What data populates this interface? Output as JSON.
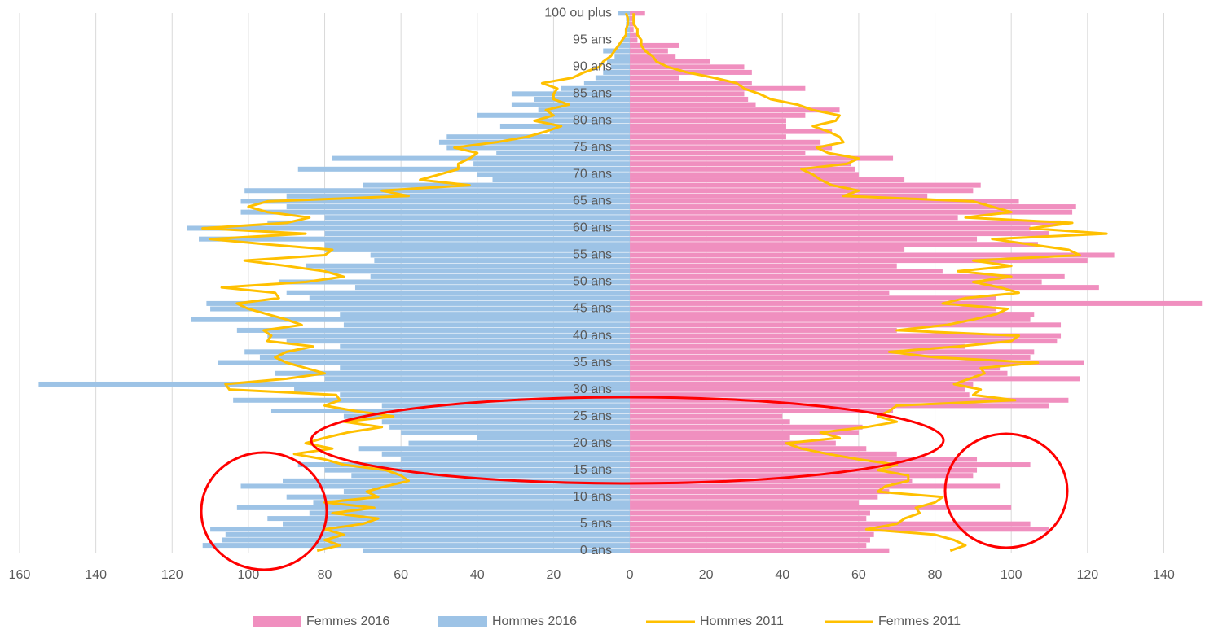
{
  "chart_data": {
    "type": "bar",
    "orientation": "horizontal",
    "categories": [
      "0 ans",
      null,
      null,
      null,
      null,
      "5 ans",
      null,
      null,
      null,
      null,
      "10 ans",
      null,
      null,
      null,
      null,
      "15 ans",
      null,
      null,
      null,
      null,
      "20 ans",
      null,
      null,
      null,
      null,
      "25 ans",
      null,
      null,
      null,
      null,
      "30 ans",
      null,
      null,
      null,
      null,
      "35 ans",
      null,
      null,
      null,
      null,
      "40 ans",
      null,
      null,
      null,
      null,
      "45 ans",
      null,
      null,
      null,
      null,
      "50 ans",
      null,
      null,
      null,
      null,
      "55 ans",
      null,
      null,
      null,
      null,
      "60 ans",
      null,
      null,
      null,
      null,
      "65 ans",
      null,
      null,
      null,
      null,
      "70 ans",
      null,
      null,
      null,
      null,
      "75 ans",
      null,
      null,
      null,
      null,
      "80 ans",
      null,
      null,
      null,
      null,
      "85 ans",
      null,
      null,
      null,
      null,
      "90 ans",
      null,
      null,
      null,
      null,
      "95 ans",
      null,
      null,
      null,
      null,
      "100 ou plus"
    ],
    "series": [
      {
        "name": "Femmes 2016",
        "type": "bar",
        "color": "#f08fbf",
        "values": [
          68,
          62,
          63,
          64,
          110,
          105,
          62,
          63,
          100,
          60,
          65,
          68,
          97,
          74,
          90,
          91,
          105,
          91,
          70,
          62,
          54,
          42,
          60,
          61,
          42,
          40,
          69,
          110,
          115,
          89,
          88,
          90,
          118,
          99,
          97,
          119,
          105,
          106,
          88,
          112,
          113,
          70,
          113,
          105,
          106,
          96,
          150,
          96,
          68,
          123,
          108,
          114,
          82,
          70,
          120,
          127,
          72,
          107,
          91,
          110,
          105,
          113,
          86,
          116,
          117,
          102,
          78,
          90,
          92,
          72,
          60,
          59,
          58,
          69,
          46,
          53,
          50,
          41,
          53,
          41,
          41,
          46,
          55,
          33,
          31,
          30,
          46,
          32,
          13,
          32,
          30,
          21,
          12,
          10,
          13,
          2,
          2,
          1,
          1,
          1,
          4
        ]
      },
      {
        "name": "Hommes 2016",
        "type": "bar",
        "color": "#9dc3e6",
        "values": [
          -70,
          -112,
          -107,
          -106,
          -110,
          -91,
          -95,
          -84,
          -103,
          -83,
          -90,
          -75,
          -102,
          -91,
          -73,
          -80,
          -87,
          -60,
          -65,
          -71,
          -58,
          -40,
          -60,
          -63,
          -65,
          -75,
          -94,
          -65,
          -104,
          -76,
          -88,
          -155,
          -80,
          -93,
          -76,
          -108,
          -97,
          -101,
          -76,
          -90,
          -95,
          -103,
          -75,
          -115,
          -76,
          -110,
          -111,
          -84,
          -90,
          -72,
          -92,
          -68,
          -80,
          -85,
          -67,
          -68,
          -80,
          -80,
          -113,
          -80,
          -116,
          -95,
          -80,
          -102,
          -90,
          -102,
          -90,
          -101,
          -70,
          -36,
          -40,
          -87,
          -41,
          -78,
          -35,
          -48,
          -50,
          -48,
          -21,
          -34,
          -24,
          -40,
          -24,
          -31,
          -25,
          -31,
          -18,
          -12,
          -9,
          -7,
          -5,
          -6,
          -4,
          -7,
          -3,
          -2,
          -1,
          -1,
          -1,
          -1,
          -3
        ]
      },
      {
        "name": "Hommes 2011",
        "type": "line",
        "color": "#ffc000",
        "values": [
          -82,
          -76,
          -80,
          -75,
          -80,
          -70,
          -66,
          -78,
          -67,
          -80,
          -66,
          -69,
          -64,
          -58,
          -60,
          -64,
          -75,
          -80,
          -88,
          -78,
          -85,
          -80,
          -74,
          -65,
          -75,
          -62,
          -72,
          -80,
          -76,
          -77,
          -105,
          -106,
          -90,
          -80,
          -85,
          -90,
          -93,
          -90,
          -83,
          -95,
          -94,
          -96,
          -86,
          -90,
          -95,
          -100,
          -103,
          -92,
          -93,
          -107,
          -85,
          -75,
          -80,
          -90,
          -101,
          -80,
          -78,
          -95,
          -110,
          -85,
          -112,
          -90,
          -84,
          -95,
          -100,
          -95,
          -58,
          -65,
          -42,
          -55,
          -50,
          -45,
          -45,
          -42,
          -40,
          -46,
          -35,
          -27,
          -22,
          -18,
          -25,
          -20,
          -22,
          -16,
          -20,
          -20,
          -19,
          -23,
          -15,
          -12,
          -8,
          -7,
          -5,
          -4,
          -3,
          -2,
          -1,
          -1,
          -0.5,
          -0.5,
          -1
        ]
      },
      {
        "name": "Femmes 2011",
        "type": "line",
        "color": "#ffc000",
        "values": [
          84,
          88,
          85,
          80,
          62,
          70,
          72,
          76,
          75,
          80,
          82,
          65,
          67,
          73,
          73,
          65,
          70,
          60,
          52,
          45,
          41,
          55,
          50,
          62,
          70,
          65,
          68,
          70,
          101,
          90,
          92,
          85,
          89,
          93,
          92,
          107,
          80,
          68,
          86,
          100,
          102,
          70,
          83,
          90,
          96,
          99,
          82,
          88,
          102,
          97,
          90,
          100,
          86,
          100,
          90,
          118,
          115,
          105,
          95,
          125,
          105,
          116,
          88,
          100,
          95,
          90,
          56,
          60,
          53,
          50,
          48,
          45,
          57,
          60,
          52,
          49,
          56,
          55,
          52,
          48,
          54,
          55,
          48,
          44,
          37,
          34,
          30,
          28,
          22,
          15,
          10,
          7,
          6,
          4,
          3,
          3,
          2,
          2,
          1,
          1,
          1
        ]
      }
    ],
    "xlim": [
      -160,
      150.8
    ],
    "xticks": [
      {
        "value": -160,
        "label": "160"
      },
      {
        "value": -140,
        "label": "140"
      },
      {
        "value": -120,
        "label": "120"
      },
      {
        "value": -100,
        "label": "100"
      },
      {
        "value": -80,
        "label": "80"
      },
      {
        "value": -60,
        "label": "60"
      },
      {
        "value": -40,
        "label": "40"
      },
      {
        "value": -20,
        "label": "20"
      },
      0,
      20,
      40,
      60,
      80,
      100,
      120,
      140
    ],
    "grid": true,
    "legend": "bottom"
  }
}
